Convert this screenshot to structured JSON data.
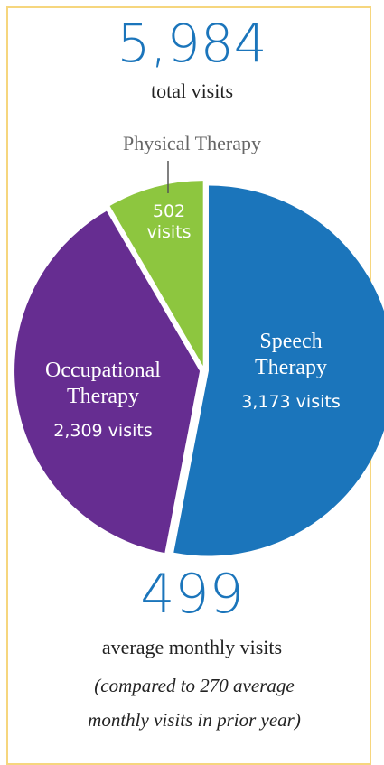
{
  "header": {
    "number": "5,984",
    "caption": "total visits"
  },
  "chart_data": {
    "type": "pie",
    "categories": [
      "Speech Therapy",
      "Occupational Therapy",
      "Physical Therapy"
    ],
    "values": [
      3173,
      2309,
      502
    ],
    "value_labels": [
      "3,173 visits",
      "2,309 visits",
      "502 visits"
    ],
    "colors": [
      "#1b75bb",
      "#662d91",
      "#8dc63f"
    ]
  },
  "footer": {
    "number": "499",
    "caption": "average monthly visits",
    "note": "(compared to 270 average monthly visits in prior year)"
  }
}
